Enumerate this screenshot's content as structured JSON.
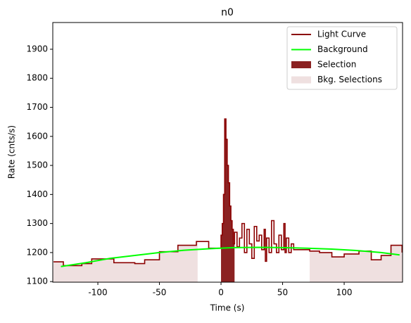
{
  "chart_data": {
    "type": "step",
    "title": "n0",
    "x_label": "Time (s)",
    "y_label": "Rate (cnts/s)",
    "xlim": [
      -136.6,
      147.4
    ],
    "ylim": [
      1098,
      1992
    ],
    "xticks": [
      -100,
      -50,
      0,
      50,
      100
    ],
    "yticks": [
      1100,
      1200,
      1300,
      1400,
      1500,
      1600,
      1700,
      1800,
      1900
    ],
    "legend": "upper right",
    "series": [
      {
        "name": "Light Curve",
        "color": "#8b0000",
        "x": [
          -136,
          -128,
          -113,
          -105,
          -87,
          -70,
          -62,
          -50,
          -35,
          -20,
          -10,
          0,
          1,
          2,
          3,
          4,
          5,
          6,
          7,
          8,
          9,
          10,
          11,
          13,
          15,
          17,
          19,
          21,
          23,
          25,
          27,
          29,
          31,
          33,
          35,
          36,
          37,
          39,
          41,
          43,
          45,
          47,
          49,
          51,
          52,
          53,
          55,
          57,
          59,
          72,
          80,
          90,
          100,
          112,
          122,
          130,
          138,
          147
        ],
        "values": [
          1168,
          1155,
          1162,
          1178,
          1165,
          1162,
          1175,
          1203,
          1225,
          1238,
          1215,
          1260,
          1300,
          1400,
          1660,
          1590,
          1500,
          1440,
          1360,
          1310,
          1280,
          1230,
          1270,
          1220,
          1250,
          1300,
          1200,
          1280,
          1230,
          1180,
          1290,
          1240,
          1260,
          1210,
          1280,
          1170,
          1250,
          1200,
          1310,
          1230,
          1200,
          1260,
          1210,
          1300,
          1200,
          1250,
          1200,
          1230,
          1210,
          1205,
          1200,
          1185,
          1195,
          1205,
          1175,
          1190,
          1225,
          1200
        ]
      },
      {
        "name": "Background",
        "color": "#00ff00",
        "x": [
          -130,
          -110,
          -90,
          -70,
          -50,
          -30,
          -10,
          10,
          30,
          50,
          70,
          90,
          110,
          130,
          145
        ],
        "values": [
          1152,
          1165,
          1180,
          1190,
          1200,
          1208,
          1213,
          1217,
          1218,
          1217,
          1215,
          1212,
          1207,
          1200,
          1192
        ]
      }
    ],
    "regions": [
      {
        "name": "Selection",
        "color": "#8b2222",
        "ranges": [
          [
            0,
            11
          ]
        ]
      },
      {
        "name": "Bkg. Selections",
        "color": "#efe0e0",
        "ranges": [
          [
            -136.6,
            -19
          ],
          [
            72,
            147.4
          ]
        ]
      }
    ]
  }
}
